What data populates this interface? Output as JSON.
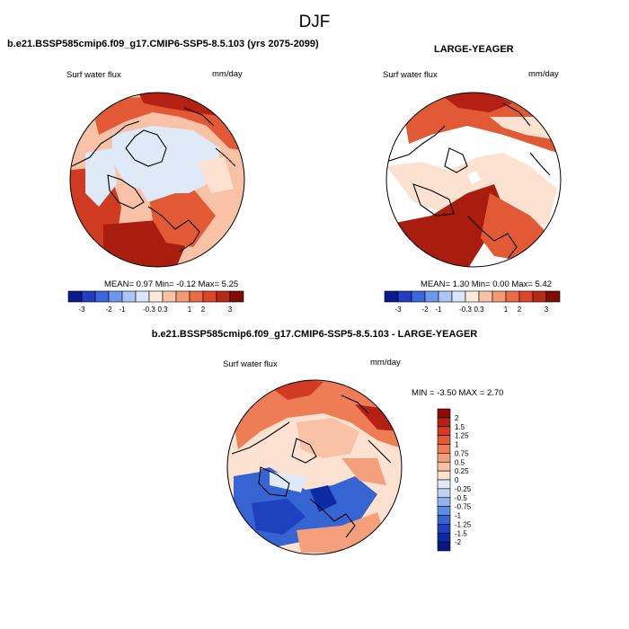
{
  "figure": {
    "season_title": "DJF"
  },
  "panels": [
    {
      "title": "b.e21.BSSP585cmip6.f09_g17.CMIP6-SSP5-8.5.103 (yrs 2075-2099)",
      "variable": "Surf water flux",
      "units": "mm/day",
      "stats": "MEAN=   0.97  Min=  -0.12  Max=   5.25"
    },
    {
      "title": "LARGE-YEAGER",
      "variable": "Surf water flux",
      "units": "mm/day",
      "stats": "MEAN=   1.30  Min=   0.00  Max=   5.42"
    },
    {
      "title": "b.e21.BSSP585cmip6.f09_g17.CMIP6-SSP5-8.5.103 - LARGE-YEAGER",
      "variable": "Surf water flux",
      "units": "mm/day",
      "stats": "MIN =  -3.50 MAX =   2.70"
    }
  ],
  "colorbar_abs": {
    "labels": [
      "-3",
      "-2",
      "-1",
      "-0.3",
      "0.3",
      "1",
      "2",
      "3"
    ],
    "colors": [
      "#0a1a8c",
      "#1f3fbf",
      "#3a68d8",
      "#6f98ea",
      "#a9c6f2",
      "#d8e7fb",
      "#fdeadf",
      "#f7c3a6",
      "#f29a76",
      "#ea6b47",
      "#d9462a",
      "#b52a14",
      "#7f0d04"
    ]
  },
  "colorbar_diff": {
    "labels": [
      "2",
      "1.5",
      "1.25",
      "1",
      "0.75",
      "0.5",
      "0.25",
      "0",
      "-0.25",
      "-0.5",
      "-0.75",
      "-1",
      "-1.25",
      "-1.5",
      "-2"
    ],
    "colors": [
      "#8b0d04",
      "#b42013",
      "#d03b22",
      "#e25a35",
      "#ee7d55",
      "#f5a07c",
      "#f9c2a6",
      "#fde2d2",
      "#dfeaf9",
      "#bdd3f4",
      "#92b4ec",
      "#5f8de1",
      "#3764d3",
      "#1e42bd",
      "#0d2aa5",
      "#071a80"
    ]
  }
}
